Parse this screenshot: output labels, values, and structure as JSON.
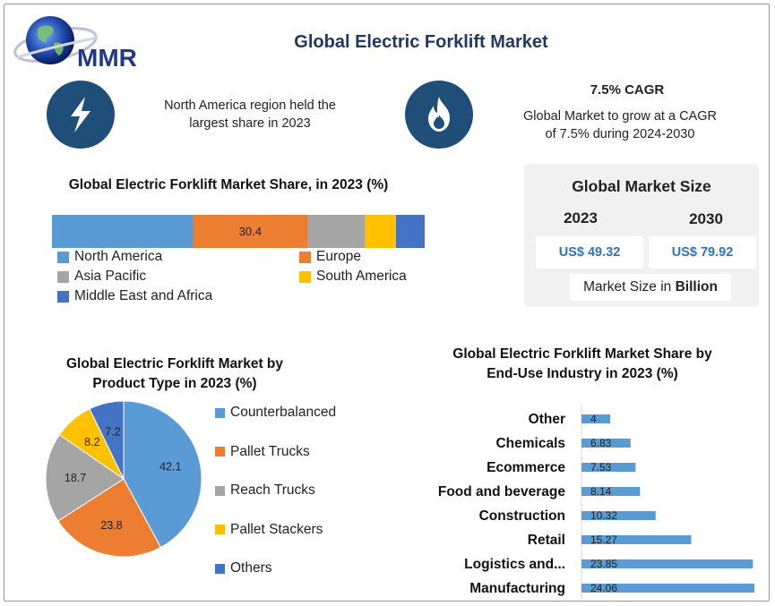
{
  "brand": {
    "logo_text": "MMR"
  },
  "title": "Global Electric Forklift Market",
  "highlights": {
    "region_text_line1": "North America region held the",
    "region_text_line2": "largest share in 2023",
    "cagr_title": "7.5% CAGR",
    "cagr_text_line1": "Global Market to grow at a CAGR",
    "cagr_text_line2": "of 7.5% during 2024-2030"
  },
  "market_size": {
    "title": "Global Market Size",
    "year_1": "2023",
    "year_2": "2030",
    "value_1": "US$ 49.32",
    "value_2": "US$ 79.92",
    "unit_prefix": "Market Size in ",
    "unit_bold": "Billion"
  },
  "colors": {
    "blue": "#5b9bd5",
    "orange": "#ed7d31",
    "gray": "#a5a5a5",
    "yellow": "#ffc000",
    "dark_blue": "#4472c4",
    "title_navy": "#1f3864",
    "icon_navy": "#1f4e79"
  },
  "chart_data": [
    {
      "type": "bar",
      "orientation": "stacked-horizontal",
      "title": "Global Electric Forklift Market Share, in 2023 (%)",
      "series": [
        {
          "name": "North America",
          "value": 38.0,
          "label": "",
          "color": "#5b9bd5"
        },
        {
          "name": "Europe",
          "value": 30.4,
          "label": "30.4",
          "color": "#ed7d31"
        },
        {
          "name": "Asia Pacific",
          "value": 15.4,
          "label": "",
          "color": "#a5a5a5"
        },
        {
          "name": "South America",
          "value": 8.4,
          "label": "",
          "color": "#ffc000"
        },
        {
          "name": "Middle East and Africa",
          "value": 7.8,
          "label": "",
          "color": "#4472c4"
        }
      ],
      "legend": "bottom"
    },
    {
      "type": "pie",
      "title_line1": "Global Electric Forklift Market by",
      "title_line2": "Product Type in 2023 (%)",
      "slices": [
        {
          "name": "Counterbalanced",
          "value": 42.1,
          "color": "#5b9bd5"
        },
        {
          "name": "Pallet Trucks",
          "value": 23.8,
          "color": "#ed7d31"
        },
        {
          "name": "Reach Trucks",
          "value": 18.7,
          "color": "#a5a5a5"
        },
        {
          "name": "Pallet Stackers",
          "value": 8.2,
          "color": "#ffc000"
        },
        {
          "name": "Others",
          "value": 7.2,
          "color": "#4472c4"
        }
      ],
      "legend": "right"
    },
    {
      "type": "bar",
      "orientation": "horizontal",
      "title_line1": "Global Electric Forklift Market Share by",
      "title_line2": "End-Use Industry in 2023 (%)",
      "categories": [
        "Other",
        "Chemicals",
        "Ecommerce",
        "Food and beverage",
        "Construction",
        "Retail",
        "Logistics and...",
        "Manufacturing"
      ],
      "values": [
        4,
        6.83,
        7.53,
        8.14,
        10.32,
        15.27,
        23.85,
        24.06
      ],
      "labels": [
        "4",
        "6.83",
        "7.53",
        "8.14",
        "10.32",
        "15.27",
        "23.85",
        "24.06"
      ],
      "color": "#5b9bd5",
      "xlim": [
        0,
        30
      ]
    }
  ]
}
